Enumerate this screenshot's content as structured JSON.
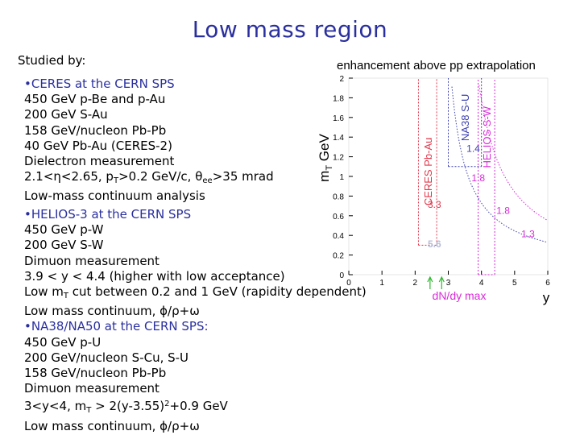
{
  "slide": {
    "title": "Low mass region",
    "studied_by": "Studied by:"
  },
  "ceres": {
    "head": "•CERES at the CERN SPS",
    "l1": "450 GeV p-Be and p-Au",
    "l2": "200 GeV S-Au",
    "l3": "158 GeV/nucleon Pb-Pb",
    "l4": "40 GeV Pb-Au (CERES-2)",
    "l5": "Dielectron measurement",
    "l6_a": "2.1<η<2.65, p",
    "l6_sub": "T",
    "l6_b": ">0.2 GeV/c, θ",
    "l6_sub2": "ee",
    "l6_c": ">35 mrad",
    "l7": "Low-mass continuum analysis"
  },
  "helios": {
    "head": "•HELIOS-3 at the CERN SPS",
    "l1": "450 GeV p-W",
    "l2": "200 GeV S-W",
    "l3": "Dimuon measurement",
    "l4": "3.9 < y < 4.4 (higher with low acceptance)",
    "l5_a": "Low m",
    "l5_sub": "T",
    "l5_b": " cut between 0.2 and 1 GeV (rapidity dependent)",
    "l6": "Low mass continuum, ϕ/ρ+ω"
  },
  "na38": {
    "head": "•NA38/NA50 at the CERN SPS:",
    "l1": " 450 GeV  p-U",
    "l2": " 200 GeV/nucleon S-Cu, S-U",
    "l3": " 158 GeV/nucleon Pb-Pb",
    "l4": " Dimuon measurement",
    "l5_a": "3<y<4, m",
    "l5_sub": "T",
    "l5_b": " > 2(y-3.55)",
    "l5_sup": "2",
    "l5_c": "+0.9 GeV",
    "l6": "Low mass continuum, ϕ/ρ+ω"
  },
  "chart_data": {
    "type": "line",
    "title": "enhancement above pp extrapolation",
    "xlabel": "y",
    "ylabel": "m",
    "ylabel_sub": "T",
    "ylabel_unit": " GeV",
    "xlabel_top": "dN/dy max",
    "xlim": [
      0,
      6
    ],
    "ylim": [
      0,
      2
    ],
    "xticks": [
      "0",
      "1",
      "2",
      "3",
      "4",
      "5",
      "6"
    ],
    "yticks": [
      "0",
      "0.2",
      "0.4",
      "0.6",
      "0.8",
      "1",
      "1.2",
      "1.4",
      "1.6",
      "1.8",
      "2"
    ],
    "series": [
      {
        "name": "CERES Pb-Au",
        "color": "#e0354a",
        "x": [
          2.1,
          2.65
        ],
        "y": [
          0.3,
          2.0
        ]
      },
      {
        "name": "NA38 S-U",
        "color": "#3b3fb0",
        "x": [
          3.0,
          4.0
        ],
        "y": [
          1.1,
          2.0
        ]
      },
      {
        "name": "HELIOS S-W",
        "color": "#d82ad8",
        "x": [
          3.9,
          4.4
        ],
        "y": [
          0.0,
          2.0
        ]
      }
    ],
    "annotations": [
      {
        "text": "3.3",
        "x": 2.38,
        "y": 0.68,
        "color": "#e0354a"
      },
      {
        "text": "5.6",
        "x": 2.38,
        "y": 0.28,
        "color": "#b8bcd8"
      },
      {
        "text": "1.4",
        "x": 3.55,
        "y": 1.25,
        "color": "#3b3fb0"
      },
      {
        "text": "1.8",
        "x": 3.7,
        "y": 0.95,
        "color": "#d82ad8"
      },
      {
        "text": "1.8",
        "x": 4.45,
        "y": 0.62,
        "color": "#d82ad8"
      },
      {
        "text": "1.3",
        "x": 5.2,
        "y": 0.38,
        "color": "#d82ad8"
      }
    ],
    "arrow_color": "#2db82d",
    "title_color": "#000000",
    "xlabel_top_color": "#d82ad8"
  }
}
